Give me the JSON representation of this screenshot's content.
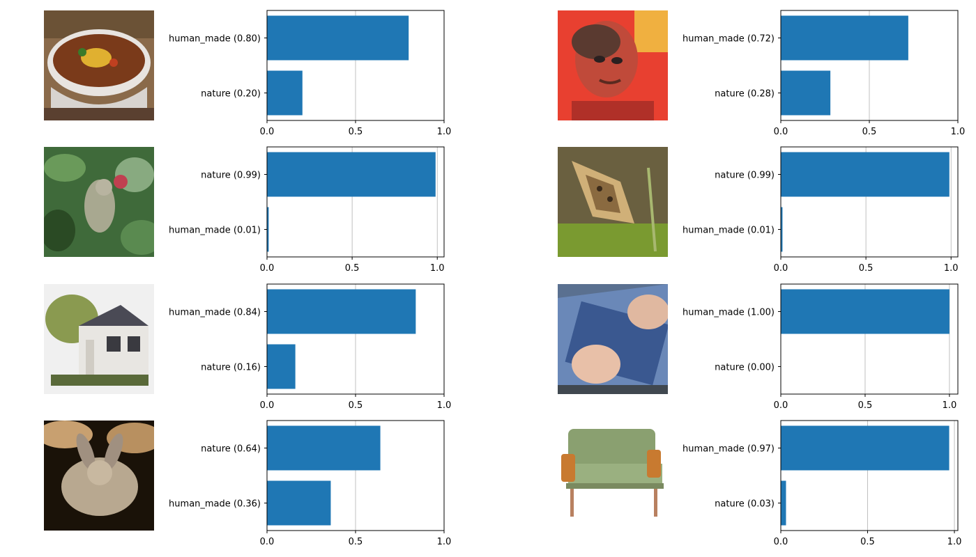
{
  "chart_data": [
    {
      "type": "bar",
      "orientation": "horizontal",
      "categories": [
        "human_made (0.80)",
        "nature (0.20)"
      ],
      "values": [
        0.8,
        0.2
      ],
      "xlim": [
        0,
        1.0
      ],
      "xticks": [
        "0.0",
        "0.5",
        "1.0"
      ],
      "grid": "x",
      "color": "#1f77b4",
      "thumbnail_icon": "soup-bowl-icon"
    },
    {
      "type": "bar",
      "orientation": "horizontal",
      "categories": [
        "human_made (0.72)",
        "nature (0.28)"
      ],
      "values": [
        0.72,
        0.28
      ],
      "xlim": [
        0,
        1.0
      ],
      "xticks": [
        "0.0",
        "0.5",
        "1.0"
      ],
      "grid": "x",
      "color": "#1f77b4",
      "thumbnail_icon": "portrait-face-icon"
    },
    {
      "type": "bar",
      "orientation": "horizontal",
      "categories": [
        "nature (0.99)",
        "human_made (0.01)"
      ],
      "values": [
        0.99,
        0.01
      ],
      "xlim": [
        0,
        1.04
      ],
      "xticks": [
        "0.0",
        "0.5",
        "1.0"
      ],
      "grid": "x",
      "color": "#1f77b4",
      "thumbnail_icon": "bird-in-foliage-icon"
    },
    {
      "type": "bar",
      "orientation": "horizontal",
      "categories": [
        "nature (0.99)",
        "human_made (0.01)"
      ],
      "values": [
        0.99,
        0.01
      ],
      "xlim": [
        0,
        1.04
      ],
      "xticks": [
        "0.0",
        "0.5",
        "1.0"
      ],
      "grid": "x",
      "color": "#1f77b4",
      "thumbnail_icon": "butterfly-icon"
    },
    {
      "type": "bar",
      "orientation": "horizontal",
      "categories": [
        "human_made (0.84)",
        "nature (0.16)"
      ],
      "values": [
        0.84,
        0.16
      ],
      "xlim": [
        0,
        1.0
      ],
      "xticks": [
        "0.0",
        "0.5",
        "1.0"
      ],
      "grid": "x",
      "color": "#1f77b4",
      "thumbnail_icon": "house-icon"
    },
    {
      "type": "bar",
      "orientation": "horizontal",
      "categories": [
        "human_made (1.00)",
        "nature (0.00)"
      ],
      "values": [
        1.0,
        0.0
      ],
      "xlim": [
        0,
        1.05
      ],
      "xticks": [
        "0.0",
        "0.5",
        "1.0"
      ],
      "grid": "x",
      "color": "#1f77b4",
      "thumbnail_icon": "keyboard-hands-icon"
    },
    {
      "type": "bar",
      "orientation": "horizontal",
      "categories": [
        "nature (0.64)",
        "human_made (0.36)"
      ],
      "values": [
        0.64,
        0.36
      ],
      "xlim": [
        0,
        1.0
      ],
      "xticks": [
        "0.0",
        "0.5",
        "1.0"
      ],
      "grid": "x",
      "color": "#1f77b4",
      "thumbnail_icon": "rabbit-icon"
    },
    {
      "type": "bar",
      "orientation": "horizontal",
      "categories": [
        "human_made (0.97)",
        "nature (0.03)"
      ],
      "values": [
        0.97,
        0.03
      ],
      "xlim": [
        0,
        1.02
      ],
      "xticks": [
        "0.0",
        "0.5",
        "1.0"
      ],
      "grid": "x",
      "color": "#1f77b4",
      "thumbnail_icon": "green-sofa-icon"
    }
  ]
}
